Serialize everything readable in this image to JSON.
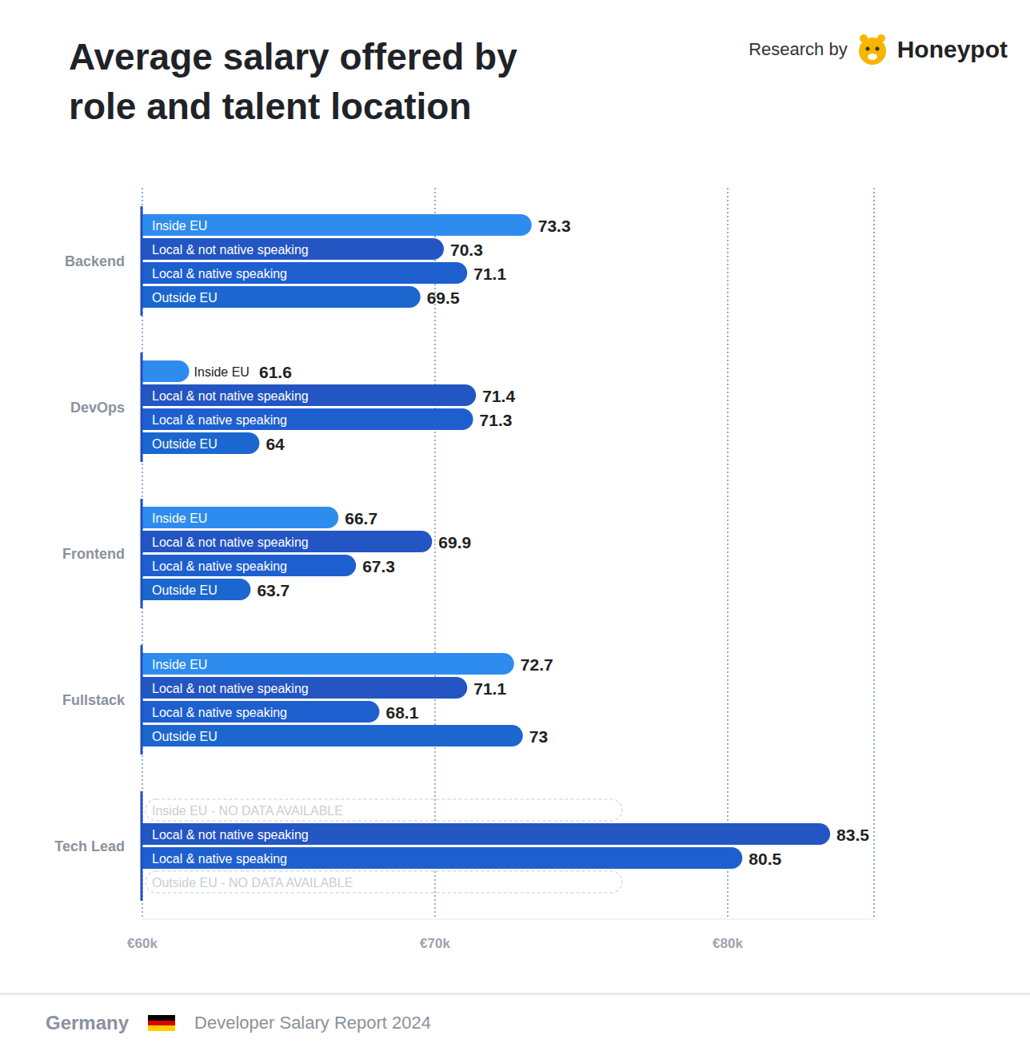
{
  "chart_data": {
    "type": "bar",
    "orientation": "horizontal",
    "title": "Average salary offered by role and talent location",
    "source": {
      "prefix": "Research by",
      "name": "Honeypot"
    },
    "footer": {
      "country": "Germany",
      "report": "Developer Salary Report 2024"
    },
    "categories": [
      "Backend",
      "DevOps",
      "Frontend",
      "Fullstack",
      "Tech Lead"
    ],
    "series": [
      {
        "name": "Inside EU",
        "color": "#2e8cee",
        "values": [
          73.3,
          61.6,
          66.7,
          72.7,
          null
        ],
        "no_data_label": "Inside EU - NO DATA AVAILABLE"
      },
      {
        "name": "Local & not native speaking",
        "color": "#2355c3",
        "values": [
          70.3,
          71.4,
          69.9,
          71.1,
          83.5
        ]
      },
      {
        "name": "Local & native speaking",
        "color": "#1e5fd0",
        "values": [
          71.1,
          71.3,
          67.3,
          68.1,
          80.5
        ]
      },
      {
        "name": "Outside EU",
        "color": "#1b67cf",
        "values": [
          69.5,
          64,
          63.7,
          73,
          null
        ],
        "no_data_label": "Outside EU - NO DATA AVAILABLE"
      }
    ],
    "xlim": [
      60,
      85
    ],
    "xticks": [
      {
        "value": 60,
        "label": "€60k"
      },
      {
        "value": 70,
        "label": "€70k"
      },
      {
        "value": 80,
        "label": "€80k"
      }
    ],
    "grid": true,
    "data_labels": true
  }
}
